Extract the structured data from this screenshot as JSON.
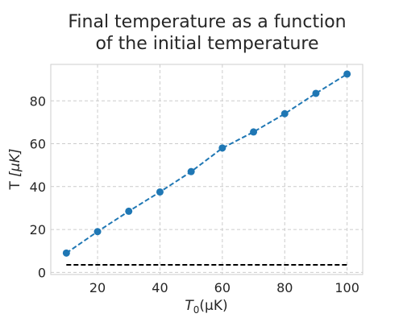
{
  "chart_data": {
    "type": "line",
    "title_lines": [
      "Final temperature as a function",
      "of the initial temperature"
    ],
    "xlabel_main": "T",
    "xlabel_sub": "0",
    "xlabel_unit": "(μK)",
    "ylabel_main": "T ",
    "ylabel_unit": "[μK]",
    "xlim": [
      5,
      105
    ],
    "ylim": [
      -1,
      97
    ],
    "xticks": [
      20,
      40,
      60,
      80,
      100
    ],
    "yticks": [
      0,
      20,
      40,
      60,
      80
    ],
    "grid": true,
    "series": [
      {
        "color": "#1f77b4",
        "style": "dashed-with-markers",
        "x": [
          10,
          20,
          30,
          40,
          50,
          60,
          70,
          80,
          90,
          100
        ],
        "y": [
          9,
          19,
          28.5,
          37.5,
          47,
          58,
          65.5,
          74,
          83.5,
          92.5
        ]
      },
      {
        "color": "#000000",
        "style": "dashed",
        "x": [
          10,
          100
        ],
        "y": [
          3.5,
          3.5
        ]
      }
    ]
  }
}
